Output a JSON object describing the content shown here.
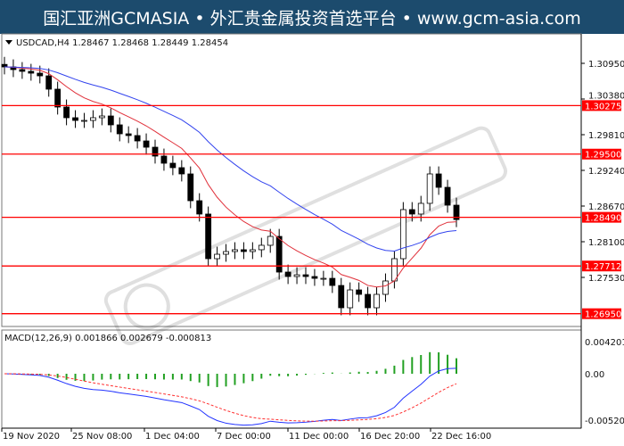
{
  "banner": "国汇亚洲GCMASIA • 外汇贵金属投资首选平台 • www.gcm-asia.com",
  "watermark": "GCMASIA国汇亚洲",
  "chart_data": {
    "type": "candlestick",
    "symbol_header": "USDCAD,H4  1.28467 1.28468 1.28449 1.28454",
    "price_ticks": [
      "1.30950",
      "1.30380",
      "1.29810",
      "1.29240",
      "1.28670",
      "1.28100",
      "1.27530"
    ],
    "ylim": [
      1.2675,
      1.3135
    ],
    "x_tick_labels": [
      "19 Nov 2020",
      "25 Nov 08:00",
      "1 Dec 04:00",
      "7 Dec 00:00",
      "11 Dec 00:00",
      "16 Dec 20:00",
      "22 Dec 16:00"
    ],
    "closes": [
      1.30893,
      1.3085,
      1.30822,
      1.30793,
      1.3075,
      1.30537,
      1.30252,
      1.30081,
      1.30038,
      1.30038,
      1.30081,
      1.30109,
      1.29967,
      1.29824,
      1.29796,
      1.2971,
      1.2961,
      1.29468,
      1.29354,
      1.29283,
      1.29183,
      1.28755,
      1.28542,
      1.27829,
      1.279,
      1.27943,
      1.27972,
      1.27943,
      1.27972,
      1.28043,
      1.28185,
      1.27615,
      1.27544,
      1.27572,
      1.27544,
      1.27515,
      1.27515,
      1.27401,
      1.27045,
      1.2733,
      1.27259,
      1.27045,
      1.27259,
      1.27473,
      1.27829,
      1.28613,
      1.28542,
      1.28713,
      1.29183,
      1.28969,
      1.28684,
      1.28454
    ],
    "horizontal_levels": [
      {
        "value": 1.30275,
        "label": "1.30275"
      },
      {
        "value": 1.295,
        "label": "1.29500"
      },
      {
        "value": 1.2849,
        "label": "1.28490"
      },
      {
        "value": 1.27712,
        "label": "1.27712"
      },
      {
        "value": 1.2695,
        "label": "1.26950"
      }
    ],
    "moving_averages": [
      {
        "color": "#e0303a",
        "period": 10
      },
      {
        "color": "#3344ee",
        "period": 26
      }
    ],
    "macd": {
      "header": "MACD(12,26,9) 0.001866 0.002679 -0.000813",
      "ticks": [
        "0.004201",
        "0.00",
        "-0.005209"
      ],
      "ylim": [
        -0.005209,
        0.004201
      ],
      "macd_color": "#2233ff",
      "signal_color": "#ff3030",
      "hist_color": "#22a022"
    },
    "colors": {
      "level": "#ff0000",
      "candle_up": "#ffffff",
      "candle_down": "#000000"
    }
  }
}
